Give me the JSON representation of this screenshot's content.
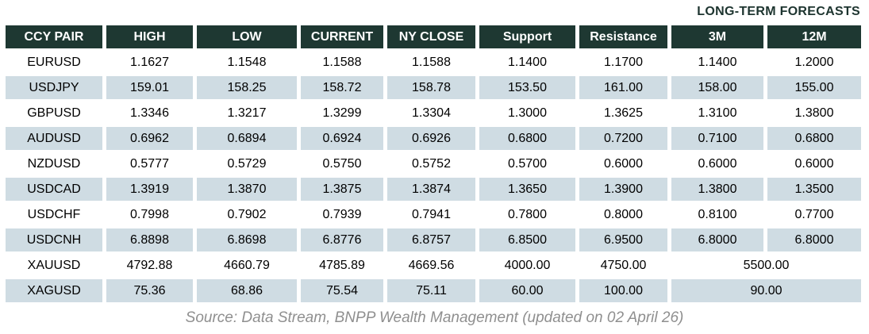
{
  "chart_data": {
    "type": "table",
    "title": "LONG-TERM FORECASTS",
    "columns": [
      "CCY PAIR",
      "HIGH",
      "LOW",
      "CURRENT",
      "NY CLOSE",
      "Support",
      "Resistance",
      "3M",
      "12M"
    ],
    "rows": [
      {
        "pair": "EURUSD",
        "values": [
          "1.1627",
          "1.1548",
          "1.1588",
          "1.1588",
          "1.1400",
          "1.1700",
          "1.1400",
          "1.2000"
        ],
        "merged_forecast": false
      },
      {
        "pair": "USDJPY",
        "values": [
          "159.01",
          "158.25",
          "158.72",
          "158.78",
          "153.50",
          "161.00",
          "158.00",
          "155.00"
        ],
        "merged_forecast": false
      },
      {
        "pair": "GBPUSD",
        "values": [
          "1.3346",
          "1.3217",
          "1.3299",
          "1.3304",
          "1.3000",
          "1.3625",
          "1.3100",
          "1.3800"
        ],
        "merged_forecast": false
      },
      {
        "pair": "AUDUSD",
        "values": [
          "0.6962",
          "0.6894",
          "0.6924",
          "0.6926",
          "0.6800",
          "0.7200",
          "0.7100",
          "0.6800"
        ],
        "merged_forecast": false
      },
      {
        "pair": "NZDUSD",
        "values": [
          "0.5777",
          "0.5729",
          "0.5750",
          "0.5752",
          "0.5700",
          "0.6000",
          "0.6000",
          "0.6000"
        ],
        "merged_forecast": false
      },
      {
        "pair": "USDCAD",
        "values": [
          "1.3919",
          "1.3870",
          "1.3875",
          "1.3874",
          "1.3650",
          "1.3900",
          "1.3800",
          "1.3500"
        ],
        "merged_forecast": false
      },
      {
        "pair": "USDCHF",
        "values": [
          "0.7998",
          "0.7902",
          "0.7939",
          "0.7941",
          "0.7800",
          "0.8000",
          "0.8100",
          "0.7700"
        ],
        "merged_forecast": false
      },
      {
        "pair": "USDCNH",
        "values": [
          "6.8898",
          "6.8698",
          "6.8776",
          "6.8757",
          "6.8500",
          "6.9500",
          "6.8000",
          "6.8000"
        ],
        "merged_forecast": false
      },
      {
        "pair": "XAUUSD",
        "values": [
          "4792.88",
          "4660.79",
          "4785.89",
          "4669.56",
          "4000.00",
          "4750.00",
          "5500.00"
        ],
        "merged_forecast": true
      },
      {
        "pair": "XAGUSD",
        "values": [
          "75.36",
          "68.86",
          "75.54",
          "75.11",
          "60.00",
          "100.00",
          "90.00"
        ],
        "merged_forecast": true
      }
    ],
    "source": "Source: Data Stream, BNPP Wealth Management (updated on 02 April 26)",
    "layout": {
      "merged_forecast_note": "For XAUUSD and XAGUSD the 3M and 12M forecast columns are merged into one cell"
    }
  },
  "colors": {
    "header_bg": "#1e3832",
    "header_text": "#ffffff",
    "alt_row_bg": "#cfdce3",
    "title_text": "#1d342f",
    "source_text": "#8f8f8f",
    "body_text": "#000000"
  }
}
